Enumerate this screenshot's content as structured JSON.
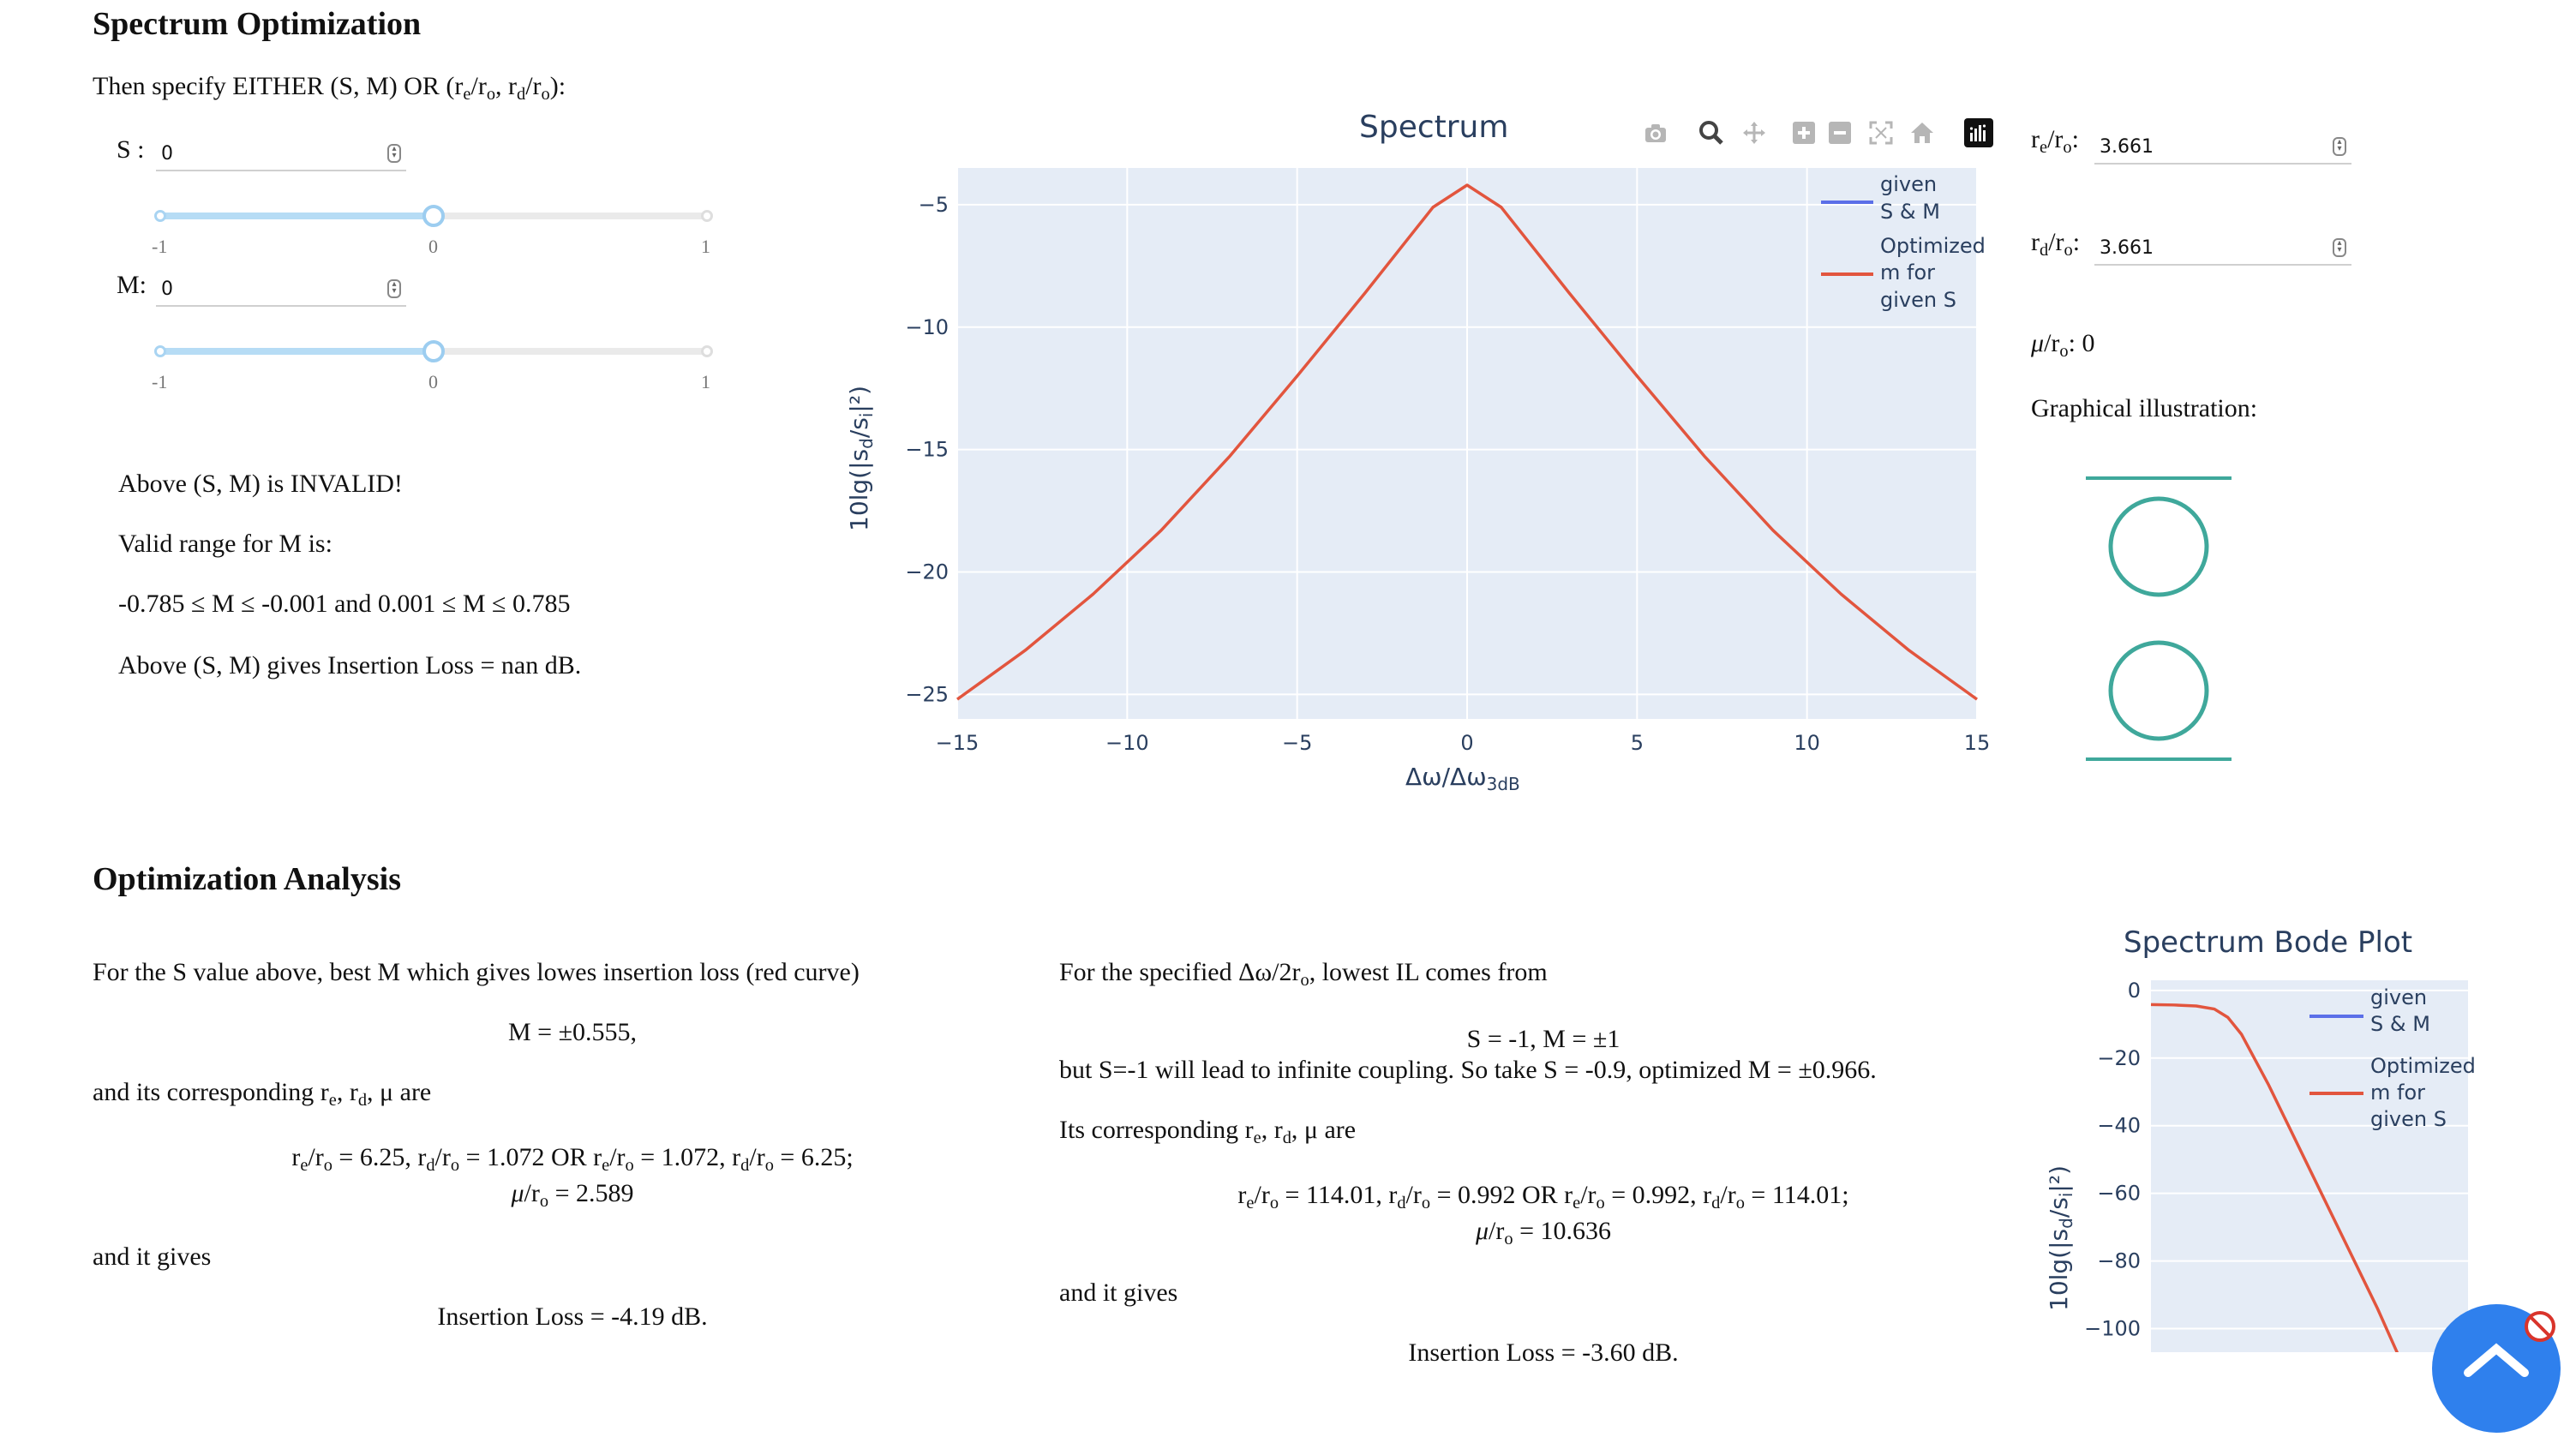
{
  "section1": {
    "title": "Spectrum Optimization",
    "instruction_prefix": "Then specify EITHER (S, M) OR (r",
    "instruction_sub1": "e",
    "instruction_mid1": "/r",
    "instruction_sub2": "o",
    "instruction_mid2": ", r",
    "instruction_sub3": "d",
    "instruction_mid3": "/r",
    "instruction_sub4": "o",
    "instruction_suffix": "):"
  },
  "controls": {
    "s_label": "S :",
    "s_value": "0",
    "m_label": "M:",
    "m_value": "0",
    "s_slider": {
      "min_label": "-1",
      "mid_label": "0",
      "max_label": "1",
      "value": 0
    },
    "m_slider": {
      "min_label": "-1",
      "mid_label": "0",
      "max_label": "1",
      "value": 0
    }
  },
  "validity": {
    "invalid_msg": "Above (S, M) is INVALID!",
    "range_title": "Valid range for M is:",
    "range_text": "-0.785 ≤ M ≤ -0.001 and 0.001 ≤ M ≤ 0.785",
    "loss_msg": "Above (S, M) gives Insertion Loss = nan dB."
  },
  "right_panel": {
    "re_label": "r",
    "re_sub": "e",
    "ro_label": "/r",
    "ro_sub": "o",
    "re_value": "3.661",
    "rd_label": "r",
    "rd_sub": "d",
    "rd_value": "3.661",
    "mu_label": "μ",
    "mu_value": "0",
    "graph_title": "Graphical illustration:",
    "circle_color": "#3fa89b"
  },
  "toolbar": {
    "icons": [
      "camera-icon",
      "zoom-icon",
      "pan-icon",
      "zoom-in-icon",
      "zoom-out-icon",
      "autoscale-icon",
      "home-icon",
      "plotly-logo-icon"
    ]
  },
  "spectrum_chart": {
    "title": "Spectrum",
    "xlabel_main": "Δω/Δω",
    "xlabel_sub": "3dB",
    "ylabel": "10lg(|s",
    "ylabel_sub": "d",
    "ylabel_mid": "/s",
    "ylabel_sub2": "i",
    "ylabel_end": "|²)",
    "legend1_line1": "given",
    "legend1_line2": "S & M",
    "legend2_line1": "Optimized",
    "legend2_line2": "m for",
    "legend2_line3": "given S",
    "xticks": [
      "−15",
      "−10",
      "−5",
      "0",
      "5",
      "10",
      "15"
    ],
    "yticks": [
      "−5",
      "−10",
      "−15",
      "−20",
      "−25"
    ]
  },
  "chart_data": [
    {
      "type": "line",
      "title": "Spectrum",
      "xlabel": "Δω/Δω3dB",
      "ylabel": "10lg(|sd/si|²)",
      "xlim": [
        -15,
        15
      ],
      "ylim": [
        -26,
        -3.5
      ],
      "grid": true,
      "legend": "top-right",
      "series": [
        {
          "name": "given S & M",
          "color": "#5b6fe8",
          "x": [],
          "y": []
        },
        {
          "name": "Optimized m for given S",
          "color": "#e2553e",
          "x": [
            -15,
            -13,
            -11,
            -9,
            -7,
            -5,
            -3,
            -1,
            0,
            1,
            3,
            5,
            7,
            9,
            11,
            13,
            15
          ],
          "y": [
            -25.2,
            -23.2,
            -20.9,
            -18.3,
            -15.3,
            -12.0,
            -8.6,
            -5.1,
            -4.2,
            -5.1,
            -8.6,
            -12.0,
            -15.3,
            -18.3,
            -20.9,
            -23.2,
            -25.2
          ]
        }
      ]
    },
    {
      "type": "line",
      "title": "Spectrum Bode Plot",
      "ylabel": "10lg(|sd/si|²)",
      "ylim": [
        -110,
        3
      ],
      "legend": "top-right",
      "series": [
        {
          "name": "given S & M",
          "color": "#5b6fe8",
          "x": [],
          "y": []
        },
        {
          "name": "Optimized m for given S",
          "color": "#e2553e",
          "x": [
            0,
            0.25,
            0.5,
            0.7,
            0.85,
            1.0,
            1.3,
            1.7,
            2.1,
            2.5,
            2.8
          ],
          "y": [
            -4.2,
            -4.3,
            -4.6,
            -5.5,
            -8,
            -13,
            -28,
            -50,
            -72,
            -94,
            -112
          ]
        }
      ]
    }
  ],
  "bode_chart": {
    "title": "Spectrum Bode Plot",
    "yticks": [
      "0",
      "−20",
      "−40",
      "−60",
      "−80",
      "−100"
    ],
    "ylabel": "10lg(|s",
    "ylabel_sub": "d",
    "ylabel_mid": "/s",
    "ylabel_sub2": "i",
    "ylabel_end": "|²)",
    "legend1_line1": "given",
    "legend1_line2": "S & M",
    "legend2_line1": "Optimized",
    "legend2_line2": "m for",
    "legend2_line3": "given S"
  },
  "analysis": {
    "title": "Optimization Analysis",
    "left": {
      "intro": "For the S value above, best M which gives lowes insertion loss (red curve)",
      "m_result": "M = ±0.555,",
      "corr_prefix": "and its corresponding r",
      "corr_mid": ", r",
      "corr_mid2": ", μ are",
      "ratio_line1": "6.25, r",
      "ratio_a": "1.072 OR r",
      "ratio_b": "1.072, r",
      "ratio_c": "6.25;",
      "mu_line": "2.589",
      "gives": "and it gives",
      "loss": "Insertion Loss = -4.19 dB."
    },
    "right": {
      "intro_prefix": "For the specified Δω/2r",
      "intro_suffix": ", lowest IL comes from",
      "s_m": "S = -1, M = ±1",
      "note": "but S=-1 will lead to infinite coupling. So take S = -0.9, optimized M = ±0.966.",
      "corr_prefix": "Its corresponding r",
      "corr_mid": ", r",
      "corr_mid2": ", μ are",
      "ratio_line1": "114.01, r",
      "ratio_a": "0.992 OR r",
      "ratio_b": "0.992, r",
      "ratio_c": "114.01;",
      "mu_line": "10.636",
      "gives": "and it gives",
      "loss": "Insertion Loss = -3.60 dB."
    }
  }
}
